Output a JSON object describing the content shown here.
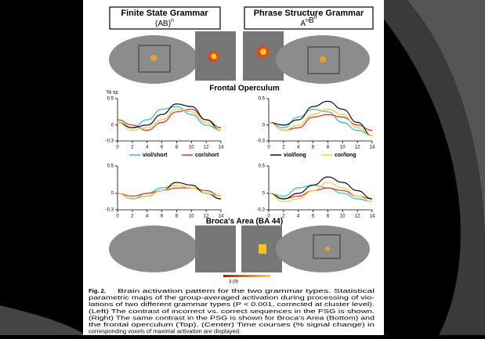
{
  "figure": {
    "headers": [
      {
        "title": "Finite State Grammar",
        "formula": [
          [
            "(AB)",
            "n"
          ]
        ]
      },
      {
        "title": "Phrase Structure Grammar",
        "formula": [
          [
            "A",
            "n"
          ],
          [
            "B",
            "n"
          ]
        ]
      }
    ],
    "section_titles": [
      "Frontal Operculum",
      "Broca's Area (BA 44)"
    ],
    "y_axis_label": "% sc",
    "legend": [
      {
        "name": "viol/short",
        "color": "#35b8d8"
      },
      {
        "name": "cor/short",
        "color": "#e0302a"
      },
      {
        "name": "viol/long",
        "color": "#111111"
      },
      {
        "name": "cor/long",
        "color": "#e8d23a"
      }
    ],
    "panels": [
      {
        "x": [
          0,
          2,
          4,
          6,
          8,
          10,
          12,
          14
        ],
        "xticks": [
          0,
          2,
          4,
          6,
          8,
          10,
          12,
          14
        ],
        "ylim": [
          -0.3,
          0.5
        ],
        "yticks": [
          0.5,
          0,
          -0.3
        ],
        "series": [
          [
            0.05,
            -0.05,
            0.1,
            0.3,
            0.35,
            0.2,
            0,
            -0.1
          ],
          [
            0.1,
            0,
            -0.1,
            0.05,
            0.25,
            0.3,
            0.1,
            -0.05
          ],
          [
            0.05,
            -0.05,
            0,
            0.2,
            0.4,
            0.35,
            0.1,
            -0.1
          ],
          [
            0.05,
            -0.1,
            -0.05,
            0.1,
            0.3,
            0.25,
            0.05,
            -0.1
          ]
        ]
      },
      {
        "x": [
          0,
          2,
          4,
          6,
          8,
          10,
          12,
          14
        ],
        "xticks": [
          0,
          2,
          4,
          6,
          8,
          10,
          12,
          14
        ],
        "ylim": [
          -0.3,
          0.5
        ],
        "yticks": [
          0.5,
          0,
          -0.3
        ],
        "series": [
          [
            0.05,
            -0.05,
            0.15,
            0.3,
            0.25,
            0.05,
            -0.1,
            -0.2
          ],
          [
            0.05,
            -0.1,
            -0.05,
            0.15,
            0.2,
            0.15,
            0,
            -0.1
          ],
          [
            0.05,
            0,
            0.1,
            0.35,
            0.45,
            0.3,
            0.05,
            -0.2
          ],
          [
            0.05,
            -0.1,
            0,
            0.2,
            0.3,
            0.2,
            -0.05,
            -0.2
          ]
        ]
      },
      {
        "x": [
          0,
          2,
          4,
          6,
          8,
          10,
          12,
          14
        ],
        "xticks": [
          0,
          2,
          4,
          6,
          8,
          10,
          12,
          14
        ],
        "ylim": [
          -0.3,
          0.5
        ],
        "yticks": [
          0.5,
          0,
          -0.3
        ],
        "series": [
          [
            0,
            -0.1,
            0,
            0.1,
            0.15,
            0.1,
            0,
            -0.1
          ],
          [
            0,
            -0.05,
            0,
            0.05,
            0.1,
            0.1,
            0.05,
            -0.05
          ],
          [
            0,
            -0.1,
            -0.05,
            0.05,
            0.2,
            0.15,
            0,
            -0.1
          ],
          [
            0,
            -0.1,
            -0.05,
            0.05,
            0.15,
            0.1,
            0,
            -0.05
          ]
        ]
      },
      {
        "x": [
          0,
          2,
          4,
          6,
          8,
          10,
          12,
          14
        ],
        "xticks": [
          0,
          2,
          4,
          6,
          8,
          10,
          12,
          14
        ],
        "ylim": [
          -0.3,
          0.5
        ],
        "yticks": [
          0.5,
          0,
          -0.3
        ],
        "series": [
          [
            0,
            -0.05,
            0.1,
            0.15,
            0.1,
            0,
            -0.1,
            -0.15
          ],
          [
            0,
            -0.1,
            -0.05,
            0.05,
            0.1,
            0.05,
            -0.05,
            -0.1
          ],
          [
            0,
            -0.1,
            0,
            0.15,
            0.3,
            0.2,
            0.05,
            -0.1
          ],
          [
            0,
            -0.15,
            -0.1,
            0.05,
            0.2,
            0.1,
            -0.05,
            -0.15
          ]
        ]
      }
    ],
    "colorbar_label": "3.09",
    "caption": {
      "label": "Fig. 2.",
      "lines": [
        "Brain activation pattern for the two grammar types. Statistical",
        "parametric maps of the group-averaged activation during processing of vio-",
        "lations of two different grammar types (P < 0.001, corrected at cluster level).",
        "(Left) The contrast of incorrect vs. correct sequences in the FSG is shown.",
        "(Right) The same contrast in the PSG is shown for Broca's Area (Bottom) and",
        "the frontal operculum (Top). (Center) Time courses (% signal change) in",
        "corresponding voxels of maximal activation are displayed."
      ]
    }
  }
}
